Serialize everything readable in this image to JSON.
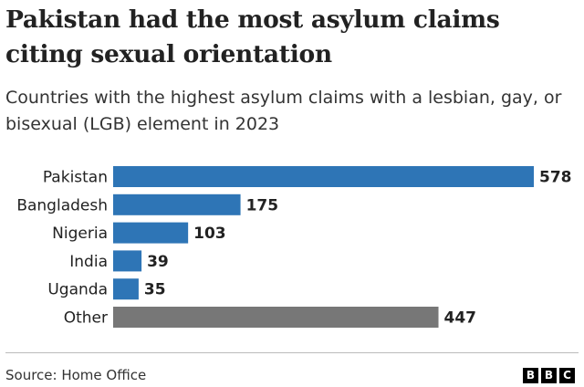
{
  "title": "Pakistan had the most asylum claims citing sexual orientation",
  "subtitle": "Countries with the highest asylum claims with a lesbian, gay, or bisexual (LGB) element in 2023",
  "source": "Source: Home Office",
  "logo_letters": [
    "B",
    "B",
    "C"
  ],
  "colors": {
    "primary_bar": "#2e75b6",
    "other_bar": "#777777",
    "text": "#222222"
  },
  "chart_data": {
    "type": "bar",
    "orientation": "horizontal",
    "title": "Pakistan had the most asylum claims citing sexual orientation",
    "subtitle": "Countries with the highest asylum claims with a lesbian, gay, or bisexual (LGB) element in 2023",
    "categories": [
      "Pakistan",
      "Bangladesh",
      "Nigeria",
      "India",
      "Uganda",
      "Other"
    ],
    "values": [
      578,
      175,
      103,
      39,
      35,
      447
    ],
    "value_labels": [
      "578",
      "175",
      "103",
      "39",
      "35",
      "447"
    ],
    "bar_colors": [
      "#2e75b6",
      "#2e75b6",
      "#2e75b6",
      "#2e75b6",
      "#2e75b6",
      "#777777"
    ],
    "xlim": [
      0,
      578
    ],
    "xlabel": "",
    "ylabel": "",
    "grid": false
  }
}
